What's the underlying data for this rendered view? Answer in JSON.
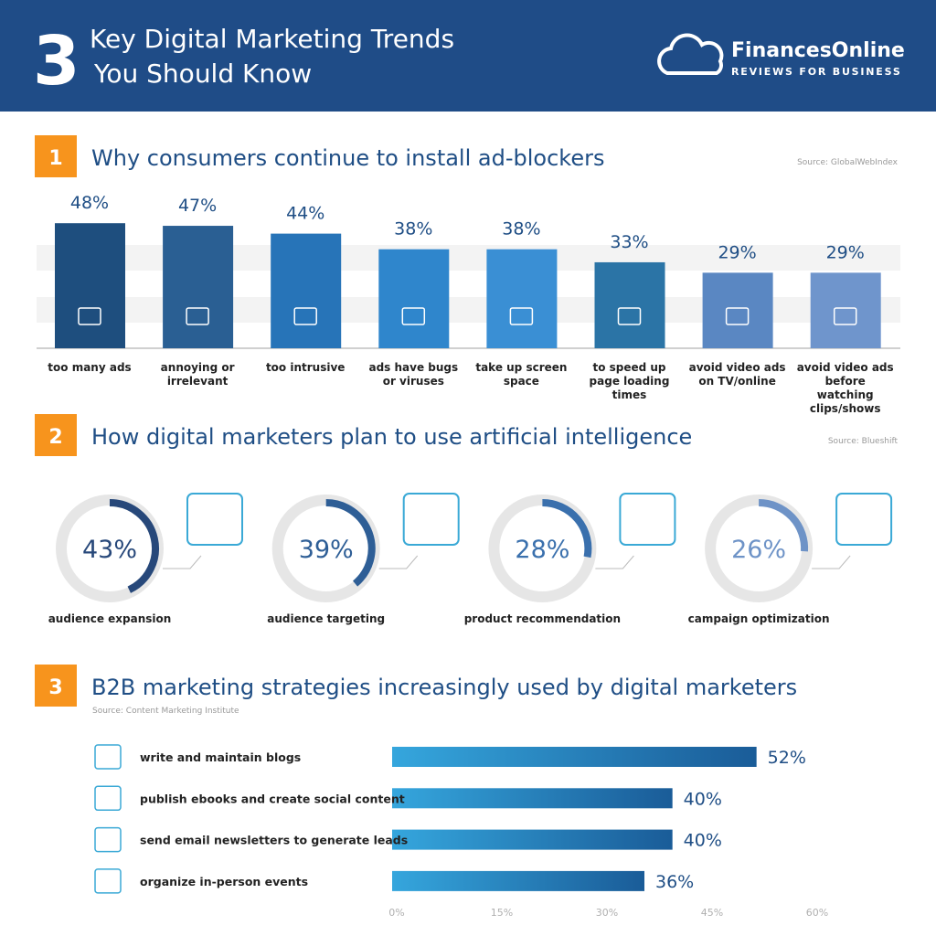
{
  "header": {
    "number": "3",
    "title_line1": "Key Digital Marketing Trends",
    "title_line2": "You Should Know",
    "brand": "FinancesOnline",
    "brand_tagline": "REVIEWS FOR BUSINESS"
  },
  "chart_data": [
    {
      "type": "bar",
      "number": "1",
      "title": "Why consumers continue to install ad-blockers",
      "source": "Source: GlobalWebIndex",
      "categories": [
        "too many ads",
        "annoying or irrelevant",
        "too intrusive",
        "ads have bugs or viruses",
        "take up screen space",
        "to speed up page loading times",
        "avoid video ads on TV/online",
        "avoid video ads before watching clips/shows"
      ],
      "values": [
        48,
        47,
        44,
        38,
        38,
        33,
        29,
        29
      ],
      "value_labels": [
        "48%",
        "47%",
        "44%",
        "38%",
        "38%",
        "33%",
        "29%",
        "29%"
      ],
      "colors": [
        "#1e4e7e",
        "#2a5f93",
        "#2774b8",
        "#2f86cc",
        "#3a8fd4",
        "#2b74a6",
        "#5a87c2",
        "#6f95cc"
      ]
    },
    {
      "type": "donut",
      "number": "2",
      "title": "How digital marketers plan to use artificial intelligence",
      "source": "Source: Blueshift",
      "categories": [
        "audience expansion",
        "audience targeting",
        "product recommendation",
        "campaign optimization"
      ],
      "values": [
        43,
        39,
        28,
        26
      ],
      "value_labels": [
        "43%",
        "39%",
        "28%",
        "26%"
      ],
      "colors": [
        "#27487a",
        "#2e5e96",
        "#3a70ad",
        "#6e93c7"
      ]
    },
    {
      "type": "hbar",
      "number": "3",
      "title": "B2B marketing strategies increasingly used by digital marketers",
      "source": "Source: Content Marketing Institute",
      "categories": [
        "write and maintain blogs",
        "publish ebooks and create social content",
        "send email newsletters to generate leads",
        "organize in-person events"
      ],
      "values": [
        52,
        40,
        40,
        36
      ],
      "value_labels": [
        "52%",
        "40%",
        "40%",
        "36%"
      ],
      "xlim": [
        0,
        60
      ],
      "xticks": [
        {
          "value": 0,
          "label": "0%"
        },
        {
          "value": 15,
          "label": "15%"
        },
        {
          "value": 30,
          "label": "30%"
        },
        {
          "value": 45,
          "label": "45%"
        },
        {
          "value": 60,
          "label": "60%"
        }
      ],
      "color_start": "#35a6dd",
      "color_end": "#1a5c98"
    }
  ]
}
